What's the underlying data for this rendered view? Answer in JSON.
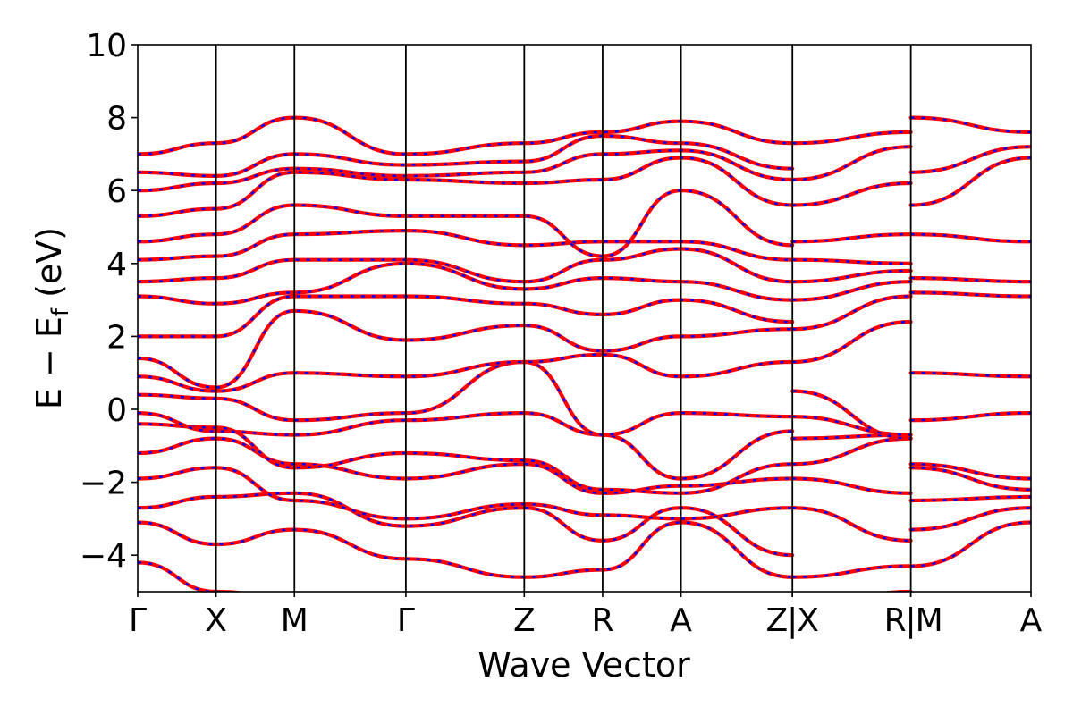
{
  "chart_data": {
    "type": "line",
    "title": "",
    "xlabel": "Wave Vector",
    "ylabel_main": "E − E",
    "ylabel_sub": "f",
    "ylabel_unit": "(eV)",
    "ylim": [
      -5,
      10
    ],
    "yticks": [
      -4,
      -2,
      0,
      2,
      4,
      6,
      8,
      10
    ],
    "ytick_labels": [
      "−4",
      "−2",
      "0",
      "2",
      "4",
      "6",
      "8",
      "10"
    ],
    "xlim": [
      0,
      5.13
    ],
    "kpoints": [
      {
        "pos": 0.0,
        "label": "Γ",
        "align": "center"
      },
      {
        "pos": 0.45,
        "label": "X",
        "align": "center"
      },
      {
        "pos": 0.9,
        "label": "M",
        "align": "center"
      },
      {
        "pos": 1.54,
        "label": "Γ",
        "align": "center"
      },
      {
        "pos": 2.22,
        "label": "Z",
        "align": "center"
      },
      {
        "pos": 2.67,
        "label": "R",
        "align": "center"
      },
      {
        "pos": 3.12,
        "label": "A",
        "align": "center"
      },
      {
        "pos": 3.76,
        "label": "Z",
        "align": "end"
      },
      {
        "pos": 3.76,
        "label": "|",
        "align": "center"
      },
      {
        "pos": 3.76,
        "label": "X",
        "align": "start"
      },
      {
        "pos": 4.44,
        "label": "R",
        "align": "end"
      },
      {
        "pos": 4.44,
        "label": "|",
        "align": "center"
      },
      {
        "pos": 4.44,
        "label": "M",
        "align": "start"
      },
      {
        "pos": 5.13,
        "label": "A",
        "align": "center"
      }
    ],
    "series_colors": {
      "bands_a": "#ff0000",
      "bands_b": "#0000ff"
    },
    "segments": [
      [
        0.0,
        0.45,
        0.9,
        1.54,
        2.22,
        2.67,
        3.12,
        3.76
      ],
      [
        3.76,
        4.44
      ],
      [
        4.44,
        5.13
      ]
    ],
    "bands_seg1": [
      [
        -4.2,
        -5.0,
        -5.2,
        -5.4,
        -5.6,
        -5.5,
        -5.6,
        -5.5
      ],
      [
        -3.1,
        -3.7,
        -3.3,
        -4.1,
        -4.6,
        -4.4,
        -3.1,
        -4.6
      ],
      [
        -2.7,
        -2.4,
        -2.3,
        -3.2,
        -2.7,
        -3.6,
        -2.7,
        -4.0
      ],
      [
        -1.9,
        -1.6,
        -2.5,
        -3.0,
        -2.6,
        -2.9,
        -3.0,
        -2.7
      ],
      [
        -1.2,
        -0.8,
        -1.5,
        -1.9,
        -1.5,
        -2.3,
        -2.1,
        -1.9
      ],
      [
        -0.4,
        -0.5,
        -1.6,
        -1.2,
        -1.4,
        -2.2,
        -2.3,
        -1.5
      ],
      [
        -0.1,
        -0.6,
        -0.7,
        -0.3,
        -0.1,
        -0.7,
        -1.9,
        -0.6
      ],
      [
        0.4,
        0.3,
        -0.3,
        -0.1,
        1.3,
        -0.7,
        -0.1,
        -0.2
      ],
      [
        0.9,
        0.5,
        1.0,
        0.9,
        1.3,
        1.5,
        0.9,
        1.3
      ],
      [
        1.4,
        0.6,
        2.7,
        1.9,
        2.3,
        1.6,
        2.0,
        2.2
      ],
      [
        2.0,
        2.0,
        3.1,
        3.1,
        2.9,
        2.6,
        3.0,
        2.4
      ],
      [
        3.1,
        2.9,
        3.2,
        4.0,
        3.3,
        3.6,
        3.5,
        3.0
      ],
      [
        3.5,
        3.6,
        4.1,
        4.1,
        3.5,
        4.1,
        4.4,
        3.5
      ],
      [
        4.1,
        4.2,
        4.8,
        4.9,
        4.5,
        4.6,
        4.6,
        4.1
      ],
      [
        4.6,
        4.8,
        5.6,
        5.3,
        5.3,
        4.2,
        6.0,
        4.5
      ],
      [
        5.3,
        5.5,
        6.5,
        6.3,
        6.2,
        6.3,
        6.9,
        5.6
      ],
      [
        6.0,
        6.2,
        6.6,
        6.4,
        6.5,
        7.0,
        7.1,
        6.3
      ],
      [
        6.5,
        6.4,
        7.0,
        6.7,
        6.8,
        7.5,
        7.3,
        6.6
      ],
      [
        7.0,
        7.3,
        8.0,
        7.0,
        7.3,
        7.6,
        7.9,
        7.3
      ]
    ],
    "bands_seg2": [
      [
        -5.5,
        -5.0
      ],
      [
        -4.6,
        -4.3
      ],
      [
        -2.7,
        -3.6
      ],
      [
        -1.9,
        -2.3
      ],
      [
        -1.5,
        -0.8
      ],
      [
        -0.8,
        -0.7
      ],
      [
        -0.2,
        -0.7
      ],
      [
        0.5,
        -0.8
      ],
      [
        1.3,
        2.4
      ],
      [
        2.2,
        3.1
      ],
      [
        3.0,
        3.5
      ],
      [
        3.5,
        3.8
      ],
      [
        4.1,
        4.0
      ],
      [
        4.6,
        4.8
      ],
      [
        5.6,
        6.2
      ],
      [
        6.3,
        7.2
      ],
      [
        7.3,
        7.6
      ]
    ],
    "bands_seg3": [
      [
        -4.3,
        -3.1
      ],
      [
        -3.3,
        -2.7
      ],
      [
        -2.5,
        -2.4
      ],
      [
        -1.6,
        -2.2
      ],
      [
        -1.5,
        -1.9
      ],
      [
        -0.3,
        -0.1
      ],
      [
        1.0,
        0.9
      ],
      [
        3.2,
        3.1
      ],
      [
        3.6,
        3.5
      ],
      [
        4.8,
        4.6
      ],
      [
        5.6,
        6.9
      ],
      [
        6.5,
        7.2
      ],
      [
        8.0,
        7.6
      ]
    ]
  }
}
